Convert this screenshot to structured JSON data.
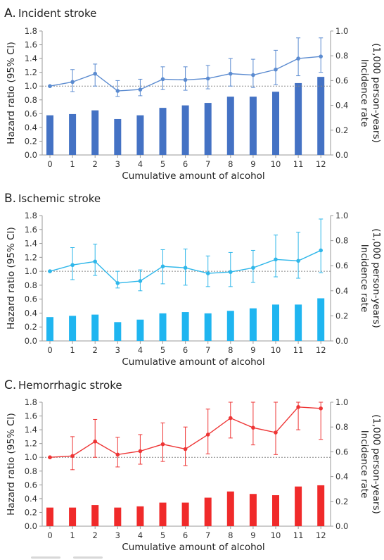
{
  "chart_data": [
    {
      "type": "bar",
      "panel_letter": "A.",
      "title": "Incident stroke",
      "xlabel": "Cumulative amount of alcohol",
      "ylabel_left": "Hazard ratio (95% CI)",
      "ylabel_right": "Incidence rate (1,000 person-years)",
      "categories": [
        "0",
        "1",
        "2",
        "3",
        "4",
        "5",
        "6",
        "7",
        "8",
        "9",
        "10",
        "11",
        "12"
      ],
      "ylim_left": [
        0,
        1.8
      ],
      "yticks_left": [
        "0.0",
        "0.2",
        "0.4",
        "0.6",
        "0.8",
        "1.0",
        "1.2",
        "1.4",
        "1.6",
        "1.8"
      ],
      "ylim_right": [
        0,
        1.0
      ],
      "yticks_right": [
        "0.0",
        "0.2",
        "0.4",
        "0.6",
        "0.8",
        "1.0"
      ],
      "reference_line": 1.0,
      "bar_color": "#4472c4",
      "line_color": "#5b8bd0",
      "series": [
        {
          "kind": "bar",
          "axis": "right",
          "values": [
            0.32,
            0.33,
            0.36,
            0.29,
            0.32,
            0.38,
            0.4,
            0.42,
            0.47,
            0.47,
            0.51,
            0.58,
            0.63
          ]
        },
        {
          "kind": "line",
          "axis": "left",
          "values": [
            1.0,
            1.06,
            1.18,
            0.93,
            0.95,
            1.1,
            1.09,
            1.11,
            1.18,
            1.16,
            1.24,
            1.4,
            1.43
          ],
          "ci_low": [
            1.0,
            0.92,
            1.0,
            0.85,
            0.86,
            0.95,
            0.94,
            0.96,
            1.0,
            0.98,
            1.02,
            1.15,
            1.2
          ],
          "ci_high": [
            1.0,
            1.24,
            1.32,
            1.08,
            1.1,
            1.28,
            1.28,
            1.3,
            1.4,
            1.39,
            1.52,
            1.7,
            1.7
          ]
        }
      ]
    },
    {
      "type": "bar",
      "panel_letter": "B.",
      "title": "Ischemic stroke",
      "xlabel": "Cumulative amount of alcohol",
      "ylabel_left": "Hazard ratio (95% CI)",
      "ylabel_right": "Incidence rate (1,000 person-years)",
      "categories": [
        "0",
        "1",
        "2",
        "3",
        "4",
        "5",
        "6",
        "7",
        "8",
        "9",
        "10",
        "11",
        "12"
      ],
      "ylim_left": [
        0,
        1.8
      ],
      "yticks_left": [
        "0.0",
        "0.2",
        "0.4",
        "0.6",
        "0.8",
        "1.0",
        "1.2",
        "1.4",
        "1.6",
        "1.8"
      ],
      "ylim_right": [
        0,
        1.0
      ],
      "yticks_right": [
        "0.0",
        "0.2",
        "0.4",
        "0.6",
        "0.8",
        "1.0"
      ],
      "reference_line": 1.0,
      "bar_color": "#1fb5f0",
      "line_color": "#2fb7ea",
      "series": [
        {
          "kind": "bar",
          "axis": "right",
          "values": [
            0.19,
            0.2,
            0.21,
            0.15,
            0.17,
            0.22,
            0.23,
            0.22,
            0.24,
            0.26,
            0.29,
            0.29,
            0.34
          ]
        },
        {
          "kind": "line",
          "axis": "left",
          "values": [
            1.0,
            1.09,
            1.14,
            0.83,
            0.86,
            1.07,
            1.05,
            0.97,
            0.99,
            1.05,
            1.17,
            1.15,
            1.3
          ],
          "ci_low": [
            1.0,
            0.88,
            0.94,
            0.76,
            0.72,
            0.82,
            0.8,
            0.78,
            0.78,
            0.84,
            0.92,
            0.9,
            0.98
          ],
          "ci_high": [
            1.0,
            1.34,
            1.39,
            1.0,
            1.02,
            1.31,
            1.32,
            1.22,
            1.27,
            1.3,
            1.52,
            1.56,
            1.75
          ]
        }
      ]
    },
    {
      "type": "bar",
      "panel_letter": "C.",
      "title": "Hemorrhagic stroke",
      "xlabel": "Cumulative amount of alcohol",
      "ylabel_left": "Hazard ratio (95% CI)",
      "ylabel_right": "Incidence rate (1,000 person-years)",
      "categories": [
        "0",
        "1",
        "2",
        "3",
        "4",
        "5",
        "6",
        "7",
        "8",
        "9",
        "10",
        "11",
        "12"
      ],
      "ylim_left": [
        0,
        1.8
      ],
      "yticks_left": [
        "0.0",
        "0.2",
        "0.4",
        "0.6",
        "0.8",
        "1.0",
        "1.2",
        "1.4",
        "1.6",
        "1.8"
      ],
      "ylim_right": [
        0,
        1.0
      ],
      "yticks_right": [
        "0.0",
        "0.2",
        "0.4",
        "0.6",
        "0.8",
        "1.0"
      ],
      "reference_line": 1.0,
      "bar_color": "#f02a2a",
      "line_color": "#ee3535",
      "series": [
        {
          "kind": "bar",
          "axis": "right",
          "values": [
            0.15,
            0.15,
            0.17,
            0.15,
            0.16,
            0.19,
            0.19,
            0.23,
            0.28,
            0.26,
            0.25,
            0.32,
            0.33
          ]
        },
        {
          "kind": "line",
          "axis": "left",
          "values": [
            1.0,
            1.02,
            1.23,
            1.04,
            1.09,
            1.19,
            1.12,
            1.33,
            1.57,
            1.43,
            1.36,
            1.73,
            1.71
          ],
          "ci_low": [
            1.0,
            0.82,
            1.0,
            0.86,
            0.9,
            0.94,
            0.88,
            1.05,
            1.28,
            1.18,
            1.04,
            1.4,
            1.26
          ],
          "ci_high": [
            1.0,
            1.3,
            1.55,
            1.29,
            1.33,
            1.5,
            1.44,
            1.7,
            1.8,
            1.8,
            1.8,
            1.8,
            1.8
          ]
        }
      ]
    }
  ]
}
